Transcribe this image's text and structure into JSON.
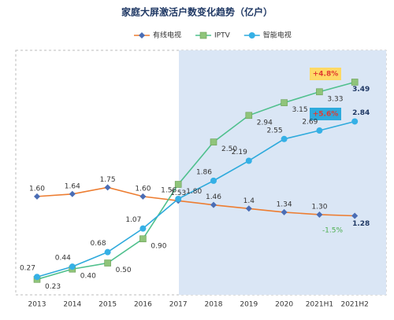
{
  "chart_data": {
    "type": "line",
    "title": "家庭大屏激活户数变化趋势（亿户）",
    "categories": [
      "2013",
      "2014",
      "2015",
      "2016",
      "2017",
      "2018",
      "2019",
      "2020",
      "2021H1",
      "2021H2"
    ],
    "series": [
      {
        "name": "有线电视",
        "color": "#ed7d31",
        "marker_color": "#4a6db5",
        "marker": "diamond",
        "values": [
          1.6,
          1.64,
          1.75,
          1.6,
          1.53,
          1.46,
          1.4,
          1.34,
          1.3,
          1.28
        ],
        "value_labels": [
          "1.60",
          "1.64",
          "1.75",
          "1.60",
          "1.53",
          "1.46",
          "1.4",
          "1.34",
          "1.30",
          "1.28"
        ]
      },
      {
        "name": "IPTV",
        "color": "#4fc08d",
        "marker_color": "#8fc47a",
        "marker": "square",
        "values": [
          0.23,
          0.4,
          0.5,
          0.9,
          1.8,
          2.5,
          2.94,
          3.15,
          3.33,
          3.49
        ],
        "value_labels": [
          "0.23",
          "0.40",
          "0.50",
          "0.90",
          "1.80",
          "2.50",
          "2.94",
          "3.15",
          "3.33",
          "3.49"
        ]
      },
      {
        "name": "智能电视",
        "color": "#2eaadc",
        "marker_color": "#35b0e6",
        "marker": "circle",
        "values": [
          0.27,
          0.44,
          0.68,
          1.07,
          1.56,
          1.86,
          2.19,
          2.55,
          2.69,
          2.84
        ],
        "value_labels": [
          "0.27",
          "0.44",
          "0.68",
          "1.07",
          "1.56",
          "1.86",
          "2.19",
          "2.55",
          "2.69",
          "2.84"
        ]
      }
    ],
    "ylim": [
      0,
      3.6
    ],
    "annotations": [
      "+4.8%",
      "+5.6%",
      "-1.5%"
    ]
  }
}
